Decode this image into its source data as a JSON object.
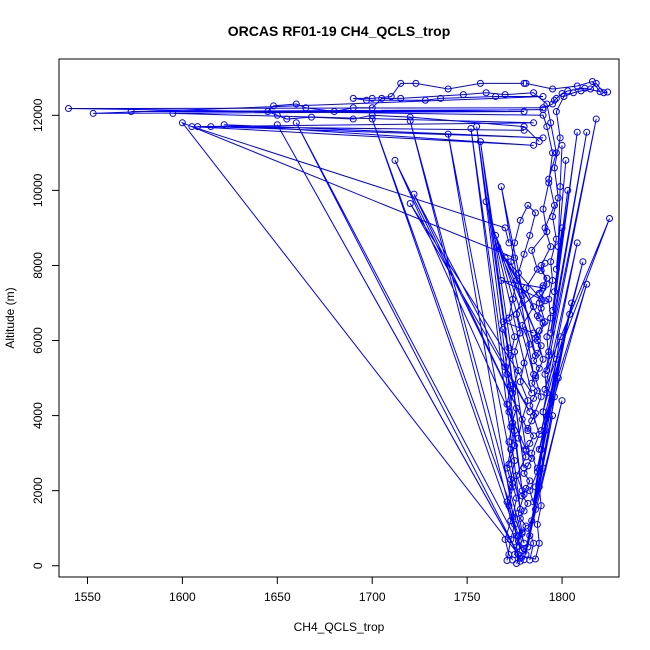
{
  "chart_data": {
    "type": "line",
    "title": "ORCAS RF01-19 CH4_QCLS_trop",
    "xlabel": "CH4_QCLS_trop",
    "ylabel": "Altitude (m)",
    "xlim": [
      1535,
      1830
    ],
    "ylim": [
      -300,
      13500
    ],
    "xticks": [
      1550,
      1600,
      1650,
      1700,
      1750,
      1800
    ],
    "yticks": [
      0,
      2000,
      4000,
      6000,
      8000,
      10000,
      12000
    ],
    "grid": false,
    "legend": "none",
    "marker": "open-circle",
    "color": "#0000ff",
    "series": [
      {
        "points": [
          [
            1778,
            120
          ],
          [
            1776,
            500
          ],
          [
            1779,
            900
          ],
          [
            1777,
            1400
          ],
          [
            1780,
            1900
          ],
          [
            1776,
            2400
          ],
          [
            1781,
            2900
          ],
          [
            1777,
            3400
          ],
          [
            1779,
            3900
          ],
          [
            1782,
            4400
          ],
          [
            1778,
            4900
          ],
          [
            1780,
            5400
          ],
          [
            1783,
            5900
          ],
          [
            1779,
            6400
          ],
          [
            1785,
            6900
          ],
          [
            1781,
            7400
          ],
          [
            1787,
            7900
          ],
          [
            1784,
            8400
          ],
          [
            1792,
            8900
          ],
          [
            1790,
            9500
          ],
          [
            1793,
            10200
          ],
          [
            1795,
            11000
          ],
          [
            1792,
            11700
          ],
          [
            1790,
            12000
          ],
          [
            1540,
            12180
          ],
          [
            1790,
            12200
          ],
          [
            1795,
            12300
          ],
          [
            1796,
            12400
          ],
          [
            1797,
            12450
          ],
          [
            1800,
            12580
          ],
          [
            1803,
            12650
          ],
          [
            1812,
            12720
          ],
          [
            1820,
            12630
          ],
          [
            1816,
            12900
          ],
          [
            1808,
            12780
          ],
          [
            1795,
            12700
          ],
          [
            1781,
            12850
          ]
        ]
      },
      {
        "points": [
          [
            1780,
            12850
          ],
          [
            1757,
            12850
          ],
          [
            1740,
            12700
          ],
          [
            1723,
            12850
          ],
          [
            1715,
            12850
          ],
          [
            1710,
            12500
          ],
          [
            1700,
            12450
          ],
          [
            1690,
            12450
          ],
          [
            1697,
            12400
          ],
          [
            1728,
            12400
          ],
          [
            1736,
            12450
          ],
          [
            1765,
            12500
          ],
          [
            1790,
            12500
          ],
          [
            1553,
            12050
          ],
          [
            1780,
            12100
          ],
          [
            1573,
            12100
          ],
          [
            1790,
            12150
          ],
          [
            1595,
            12050
          ],
          [
            1785,
            11800
          ],
          [
            1608,
            11700
          ],
          [
            1780,
            11600
          ],
          [
            1615,
            11700
          ],
          [
            1790,
            11400
          ],
          [
            1622,
            11750
          ],
          [
            1785,
            11200
          ],
          [
            1605,
            11700
          ],
          [
            1770,
            9000
          ],
          [
            1772,
            8600
          ]
        ]
      },
      {
        "points": [
          [
            1775,
            8200
          ],
          [
            1600,
            11800
          ],
          [
            1777,
            300
          ],
          [
            1650,
            11750
          ],
          [
            1778,
            200
          ],
          [
            1660,
            11800
          ],
          [
            1779,
            400
          ],
          [
            1700,
            11900
          ],
          [
            1780,
            600
          ],
          [
            1720,
            11850
          ],
          [
            1776,
            800
          ],
          [
            1740,
            11500
          ],
          [
            1778,
            1500
          ],
          [
            1752,
            11650
          ],
          [
            1779,
            2000
          ],
          [
            1755,
            11700
          ],
          [
            1780,
            2600
          ],
          [
            1757,
            11300
          ],
          [
            1781,
            3100
          ],
          [
            1712,
            10800
          ],
          [
            1782,
            3600
          ],
          [
            1722,
            9900
          ],
          [
            1783,
            4100
          ],
          [
            1720,
            9650
          ],
          [
            1784,
            4600
          ],
          [
            1760,
            9700
          ],
          [
            1785,
            5100
          ],
          [
            1768,
            10100
          ],
          [
            1786,
            5600
          ],
          [
            1765,
            8800
          ],
          [
            1787,
            6100
          ],
          [
            1766,
            8500
          ],
          [
            1788,
            6600
          ],
          [
            1770,
            8200
          ],
          [
            1789,
            7100
          ],
          [
            1768,
            7600
          ],
          [
            1790,
            7400
          ],
          [
            1769,
            6500
          ],
          [
            1785,
            6200
          ]
        ]
      },
      {
        "points": [
          [
            1780,
            160
          ],
          [
            1798,
            5000
          ],
          [
            1781,
            300
          ],
          [
            1796,
            4500
          ],
          [
            1782,
            500
          ],
          [
            1795,
            4000
          ],
          [
            1783,
            800
          ],
          [
            1800,
            4400
          ],
          [
            1784,
            1200
          ],
          [
            1797,
            5500
          ],
          [
            1785,
            1700
          ],
          [
            1799,
            6100
          ],
          [
            1786,
            2100
          ],
          [
            1804,
            6700
          ],
          [
            1787,
            2600
          ],
          [
            1805,
            7000
          ],
          [
            1788,
            3100
          ],
          [
            1813,
            7500
          ],
          [
            1789,
            3600
          ],
          [
            1811,
            8100
          ],
          [
            1790,
            4100
          ],
          [
            1808,
            8600
          ],
          [
            1791,
            4700
          ],
          [
            1825,
            9250
          ],
          [
            1792,
            5200
          ],
          [
            1818,
            11900
          ],
          [
            1793,
            5700
          ],
          [
            1813,
            11550
          ],
          [
            1794,
            6200
          ],
          [
            1808,
            11550
          ],
          [
            1795,
            6800
          ],
          [
            1803,
            10000
          ],
          [
            1796,
            7300
          ],
          [
            1800,
            9000
          ],
          [
            1797,
            7900
          ],
          [
            1802,
            10800
          ],
          [
            1798,
            8500
          ],
          [
            1799,
            10100
          ],
          [
            1800,
            11200
          ]
        ]
      },
      {
        "points": [
          [
            1771,
            140
          ],
          [
            1773,
            700
          ],
          [
            1775,
            1100
          ],
          [
            1772,
            1600
          ],
          [
            1774,
            2100
          ],
          [
            1771,
            2600
          ],
          [
            1773,
            3100
          ],
          [
            1775,
            3600
          ],
          [
            1772,
            4100
          ],
          [
            1774,
            4600
          ],
          [
            1771,
            5100
          ],
          [
            1773,
            5600
          ],
          [
            1775,
            6100
          ],
          [
            1772,
            6600
          ],
          [
            1774,
            7100
          ],
          [
            1776,
            7600
          ],
          [
            1773,
            8100
          ],
          [
            1775,
            8600
          ],
          [
            1778,
            9200
          ],
          [
            1782,
            9600
          ],
          [
            1786,
            9400
          ],
          [
            1783,
            8800
          ],
          [
            1780,
            8300
          ],
          [
            1777,
            7800
          ],
          [
            1779,
            7200
          ],
          [
            1776,
            6700
          ],
          [
            1778,
            6200
          ],
          [
            1775,
            5700
          ],
          [
            1777,
            5200
          ],
          [
            1774,
            4700
          ],
          [
            1776,
            4200
          ],
          [
            1773,
            3700
          ],
          [
            1775,
            3200
          ],
          [
            1772,
            2700
          ],
          [
            1774,
            2200
          ],
          [
            1771,
            1700
          ],
          [
            1773,
            1200
          ],
          [
            1770,
            700
          ],
          [
            1772,
            300
          ],
          [
            1774,
            150
          ]
        ]
      },
      {
        "points": [
          [
            1783,
            150
          ],
          [
            1785,
            600
          ],
          [
            1782,
            1000
          ],
          [
            1786,
            1500
          ],
          [
            1783,
            2000
          ],
          [
            1787,
            2500
          ],
          [
            1784,
            3000
          ],
          [
            1788,
            3500
          ],
          [
            1785,
            4000
          ],
          [
            1789,
            4500
          ],
          [
            1786,
            5000
          ],
          [
            1790,
            5500
          ],
          [
            1787,
            6000
          ],
          [
            1791,
            6500
          ],
          [
            1788,
            7000
          ],
          [
            1792,
            7500
          ],
          [
            1789,
            8000
          ],
          [
            1794,
            8500
          ],
          [
            1791,
            9000
          ],
          [
            1796,
            9600
          ],
          [
            1793,
            10300
          ],
          [
            1797,
            11000
          ],
          [
            1794,
            11800
          ],
          [
            1792,
            12300
          ],
          [
            1785,
            12600
          ],
          [
            1770,
            12550
          ],
          [
            1760,
            12600
          ],
          [
            1748,
            12550
          ],
          [
            1715,
            12450
          ],
          [
            1705,
            12450
          ],
          [
            1700,
            12200
          ],
          [
            1690,
            12200
          ],
          [
            1680,
            12100
          ],
          [
            1665,
            12200
          ],
          [
            1660,
            12300
          ],
          [
            1648,
            12250
          ],
          [
            1645,
            12100
          ],
          [
            1650,
            12000
          ],
          [
            1655,
            11900
          ],
          [
            1668,
            11950
          ],
          [
            1690,
            11900
          ],
          [
            1700,
            12000
          ],
          [
            1720,
            11950
          ],
          [
            1780,
            11700
          ],
          [
            1788,
            11300
          ]
        ]
      },
      {
        "points": [
          [
            1776,
            60
          ],
          [
            1778,
            260
          ],
          [
            1780,
            460
          ],
          [
            1777,
            660
          ],
          [
            1779,
            860
          ],
          [
            1781,
            1060
          ],
          [
            1778,
            1260
          ],
          [
            1780,
            1460
          ],
          [
            1782,
            1660
          ],
          [
            1779,
            1860
          ],
          [
            1781,
            2060
          ],
          [
            1783,
            2260
          ],
          [
            1780,
            2460
          ],
          [
            1782,
            2660
          ],
          [
            1784,
            2860
          ],
          [
            1781,
            3060
          ],
          [
            1783,
            3260
          ],
          [
            1785,
            3460
          ],
          [
            1782,
            3660
          ],
          [
            1784,
            3860
          ],
          [
            1786,
            4060
          ],
          [
            1783,
            4260
          ],
          [
            1785,
            4460
          ],
          [
            1787,
            4660
          ],
          [
            1784,
            4860
          ],
          [
            1786,
            5060
          ],
          [
            1788,
            5260
          ],
          [
            1785,
            5460
          ],
          [
            1787,
            5660
          ],
          [
            1789,
            5860
          ],
          [
            1786,
            6060
          ],
          [
            1788,
            6260
          ],
          [
            1790,
            6460
          ],
          [
            1787,
            6660
          ],
          [
            1789,
            6860
          ],
          [
            1791,
            7060
          ],
          [
            1788,
            7260
          ],
          [
            1790,
            7460
          ],
          [
            1792,
            7660
          ],
          [
            1789,
            7860
          ],
          [
            1791,
            8060
          ]
        ]
      },
      {
        "points": [
          [
            1769,
            6300
          ],
          [
            1772,
            5800
          ],
          [
            1770,
            5300
          ],
          [
            1773,
            4800
          ],
          [
            1771,
            4300
          ],
          [
            1774,
            3800
          ],
          [
            1772,
            3300
          ],
          [
            1775,
            2800
          ],
          [
            1773,
            2300
          ],
          [
            1776,
            1800
          ],
          [
            1774,
            1300
          ],
          [
            1777,
            800
          ],
          [
            1775,
            300
          ],
          [
            1786,
            180
          ],
          [
            1788,
            600
          ],
          [
            1787,
            1100
          ],
          [
            1789,
            1600
          ],
          [
            1788,
            2100
          ],
          [
            1790,
            2600
          ],
          [
            1789,
            3100
          ],
          [
            1791,
            3600
          ],
          [
            1790,
            4100
          ],
          [
            1792,
            4600
          ],
          [
            1791,
            5100
          ],
          [
            1793,
            5600
          ],
          [
            1792,
            6100
          ],
          [
            1794,
            6600
          ],
          [
            1793,
            7100
          ],
          [
            1795,
            7600
          ],
          [
            1794,
            8100
          ],
          [
            1797,
            8700
          ],
          [
            1795,
            9300
          ],
          [
            1798,
            9800
          ],
          [
            1796,
            10600
          ],
          [
            1799,
            11400
          ],
          [
            1797,
            12100
          ],
          [
            1801,
            12500
          ],
          [
            1806,
            12600
          ],
          [
            1810,
            12650
          ],
          [
            1815,
            12700
          ],
          [
            1818,
            12850
          ],
          [
            1822,
            12600
          ],
          [
            1824,
            12620
          ]
        ]
      }
    ]
  }
}
